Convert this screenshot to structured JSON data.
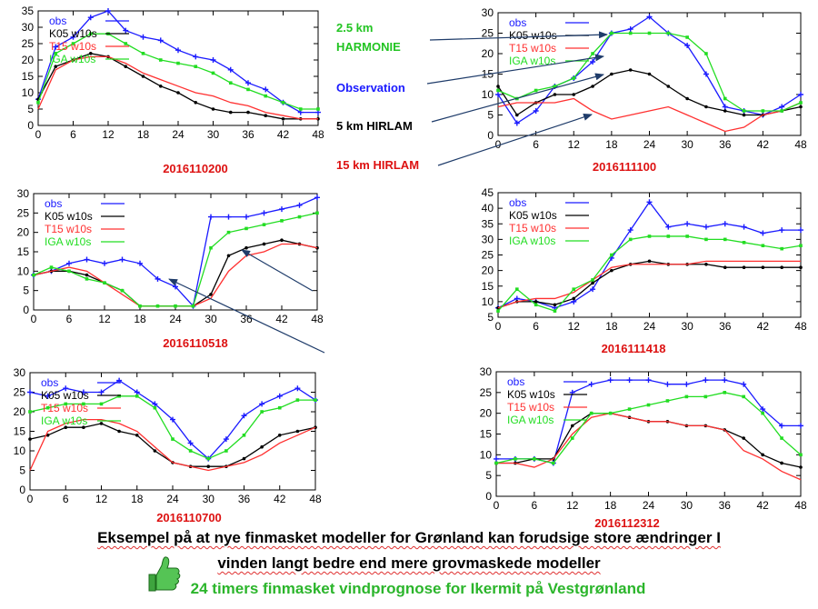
{
  "legend_labels": {
    "hirlam15": "15 km HIRLAM",
    "hirlam5": "5 km HIRLAM",
    "observation": "Observation",
    "harmonie_km": "2.5 km",
    "harmonie_name": "HARMONIE"
  },
  "captions": {
    "line1": "Eksempel på at nye finmasket modeller for Grønland kan forudsige store ændringer I",
    "line2": "vinden langt bedre end mere grovmaskede modeller",
    "line3": "24 timers  finmasket vindprognose for Ikermit på Vestgrønland"
  },
  "colors": {
    "obs": "#1a1aff",
    "k05": "#000000",
    "t15": "#ff3030",
    "iga": "#22dd22",
    "date": "#dd1111"
  },
  "chart_data": [
    {
      "type": "line",
      "title": "2016110200",
      "x": [
        0,
        3,
        6,
        9,
        12,
        15,
        18,
        21,
        24,
        27,
        30,
        33,
        36,
        39,
        42,
        45,
        48
      ],
      "ylim": [
        0,
        35
      ],
      "yticks": [
        0,
        5,
        10,
        15,
        20,
        25,
        30,
        35
      ],
      "xticks": [
        0,
        6,
        12,
        18,
        24,
        30,
        36,
        42,
        48
      ],
      "series": [
        {
          "name": "obs",
          "values": [
            8,
            24,
            27,
            33,
            35,
            29,
            27,
            26,
            23,
            21,
            20,
            17,
            13,
            11,
            7,
            4,
            4
          ]
        },
        {
          "name": "K05 w10s",
          "values": [
            8,
            18,
            20,
            22,
            21,
            18,
            15,
            12,
            10,
            7,
            5,
            4,
            4,
            3,
            2,
            2,
            2
          ]
        },
        {
          "name": "T15 w10s",
          "values": [
            5,
            17,
            20,
            21,
            21,
            19,
            16,
            14,
            12,
            10,
            9,
            7,
            6,
            4,
            3,
            2,
            2
          ]
        },
        {
          "name": "IGA w10s",
          "values": [
            7,
            22,
            25,
            28,
            28,
            25,
            22,
            20,
            19,
            18,
            16,
            13,
            11,
            9,
            7,
            5,
            5
          ]
        }
      ]
    },
    {
      "type": "line",
      "title": "2016111100",
      "x": [
        0,
        3,
        6,
        9,
        12,
        15,
        18,
        21,
        24,
        27,
        30,
        33,
        36,
        39,
        42,
        45,
        48
      ],
      "ylim": [
        0,
        30
      ],
      "yticks": [
        0,
        5,
        10,
        15,
        20,
        25,
        30
      ],
      "xticks": [
        0,
        6,
        12,
        18,
        24,
        30,
        36,
        42,
        48
      ],
      "series": [
        {
          "name": "obs",
          "values": [
            10,
            3,
            6,
            12,
            14,
            18,
            25,
            26,
            29,
            25,
            22,
            15,
            7,
            6,
            5,
            7,
            10
          ]
        },
        {
          "name": "K05 w10s",
          "values": [
            12,
            5,
            8,
            10,
            10,
            12,
            15,
            16,
            15,
            12,
            9,
            7,
            6,
            5,
            5,
            6,
            7
          ]
        },
        {
          "name": "T15 w10s",
          "values": [
            7,
            8,
            8,
            8,
            9,
            6,
            4,
            5,
            6,
            7,
            5,
            3,
            1,
            2,
            5,
            6,
            8
          ]
        },
        {
          "name": "IGA w10s",
          "values": [
            11,
            9,
            11,
            12,
            14,
            20,
            25,
            25,
            25,
            25,
            24,
            20,
            9,
            6,
            6,
            6,
            8
          ]
        }
      ]
    },
    {
      "type": "line",
      "title": "2016110518",
      "x": [
        0,
        3,
        6,
        9,
        12,
        15,
        18,
        21,
        24,
        27,
        30,
        33,
        36,
        39,
        42,
        45,
        48
      ],
      "ylim": [
        0,
        30
      ],
      "yticks": [
        0,
        5,
        10,
        15,
        20,
        25,
        30
      ],
      "xticks": [
        0,
        6,
        12,
        18,
        24,
        30,
        36,
        42,
        48
      ],
      "series": [
        {
          "name": "obs",
          "values": [
            9,
            10,
            12,
            13,
            12,
            13,
            12,
            8,
            6,
            1,
            24,
            24,
            24,
            25,
            26,
            27,
            29
          ]
        },
        {
          "name": "K05 w10s",
          "values": [
            9,
            10,
            10,
            9,
            7,
            5,
            1,
            1,
            1,
            1,
            4,
            14,
            16,
            17,
            18,
            17,
            16
          ]
        },
        {
          "name": "T15 w10s",
          "values": [
            9,
            10,
            11,
            10,
            7,
            4,
            1,
            1,
            1,
            1,
            3,
            10,
            14,
            15,
            17,
            17,
            16
          ]
        },
        {
          "name": "IGA w10s",
          "values": [
            9,
            11,
            10,
            8,
            7,
            5,
            1,
            1,
            1,
            1,
            16,
            20,
            21,
            22,
            23,
            24,
            25
          ]
        }
      ]
    },
    {
      "type": "line",
      "title": "2016111418",
      "x": [
        0,
        3,
        6,
        9,
        12,
        15,
        18,
        21,
        24,
        27,
        30,
        33,
        36,
        39,
        42,
        45,
        48
      ],
      "ylim": [
        5,
        45
      ],
      "yticks": [
        5,
        10,
        15,
        20,
        25,
        30,
        35,
        40,
        45
      ],
      "xticks": [
        0,
        6,
        12,
        18,
        24,
        30,
        36,
        42,
        48
      ],
      "series": [
        {
          "name": "obs",
          "values": [
            8,
            11,
            10,
            8,
            10,
            14,
            24,
            33,
            42,
            34,
            35,
            34,
            35,
            34,
            32,
            33,
            33
          ]
        },
        {
          "name": "K05 w10s",
          "values": [
            8,
            10,
            10,
            9,
            11,
            16,
            20,
            22,
            23,
            22,
            22,
            22,
            21,
            21,
            21,
            21,
            21
          ]
        },
        {
          "name": "T15 w10s",
          "values": [
            8,
            10,
            11,
            11,
            13,
            17,
            21,
            22,
            22,
            22,
            22,
            23,
            23,
            23,
            23,
            23,
            23
          ]
        },
        {
          "name": "IGA w10s",
          "values": [
            7,
            14,
            9,
            7,
            14,
            17,
            25,
            30,
            31,
            31,
            31,
            30,
            30,
            29,
            28,
            27,
            28
          ]
        }
      ]
    },
    {
      "type": "line",
      "title": "2016110700",
      "x": [
        0,
        3,
        6,
        9,
        12,
        15,
        18,
        21,
        24,
        27,
        30,
        33,
        36,
        39,
        42,
        45,
        48
      ],
      "ylim": [
        0,
        30
      ],
      "yticks": [
        0,
        5,
        10,
        15,
        20,
        25,
        30
      ],
      "xticks": [
        0,
        6,
        12,
        18,
        24,
        30,
        36,
        42,
        48
      ],
      "series": [
        {
          "name": "obs",
          "values": [
            25,
            24,
            26,
            25,
            25,
            28,
            25,
            22,
            18,
            12,
            8,
            13,
            19,
            22,
            24,
            26,
            23
          ]
        },
        {
          "name": "K05 w10s",
          "values": [
            13,
            14,
            16,
            16,
            17,
            15,
            14,
            10,
            7,
            6,
            6,
            6,
            8,
            11,
            14,
            15,
            16
          ]
        },
        {
          "name": "T15 w10s",
          "values": [
            5,
            15,
            17,
            18,
            18,
            17,
            15,
            11,
            7,
            6,
            5,
            6,
            7,
            9,
            12,
            14,
            16
          ]
        },
        {
          "name": "IGA w10s",
          "values": [
            20,
            21,
            22,
            22,
            22,
            24,
            24,
            21,
            13,
            10,
            8,
            10,
            14,
            20,
            21,
            23,
            23
          ]
        }
      ]
    },
    {
      "type": "line",
      "title": "2016112312",
      "x": [
        0,
        3,
        6,
        9,
        12,
        15,
        18,
        21,
        24,
        27,
        30,
        33,
        36,
        39,
        42,
        45,
        48
      ],
      "ylim": [
        0,
        30
      ],
      "yticks": [
        0,
        5,
        10,
        15,
        20,
        25,
        30
      ],
      "xticks": [
        0,
        6,
        12,
        18,
        24,
        30,
        36,
        42,
        48
      ],
      "series": [
        {
          "name": "obs",
          "values": [
            9,
            9,
            9,
            8,
            25,
            27,
            28,
            28,
            28,
            27,
            27,
            28,
            28,
            27,
            21,
            17,
            17
          ]
        },
        {
          "name": "K05 w10s",
          "values": [
            8,
            8,
            9,
            9,
            17,
            20,
            20,
            19,
            18,
            18,
            17,
            17,
            16,
            14,
            10,
            8,
            7
          ]
        },
        {
          "name": "T15 w10s",
          "values": [
            8,
            8,
            7,
            9,
            15,
            19,
            20,
            19,
            18,
            18,
            17,
            17,
            16,
            11,
            9,
            6,
            4
          ]
        },
        {
          "name": "IGA w10s",
          "values": [
            8,
            9,
            9,
            8,
            14,
            20,
            20,
            21,
            22,
            23,
            24,
            24,
            25,
            24,
            20,
            14,
            10
          ]
        }
      ]
    }
  ]
}
